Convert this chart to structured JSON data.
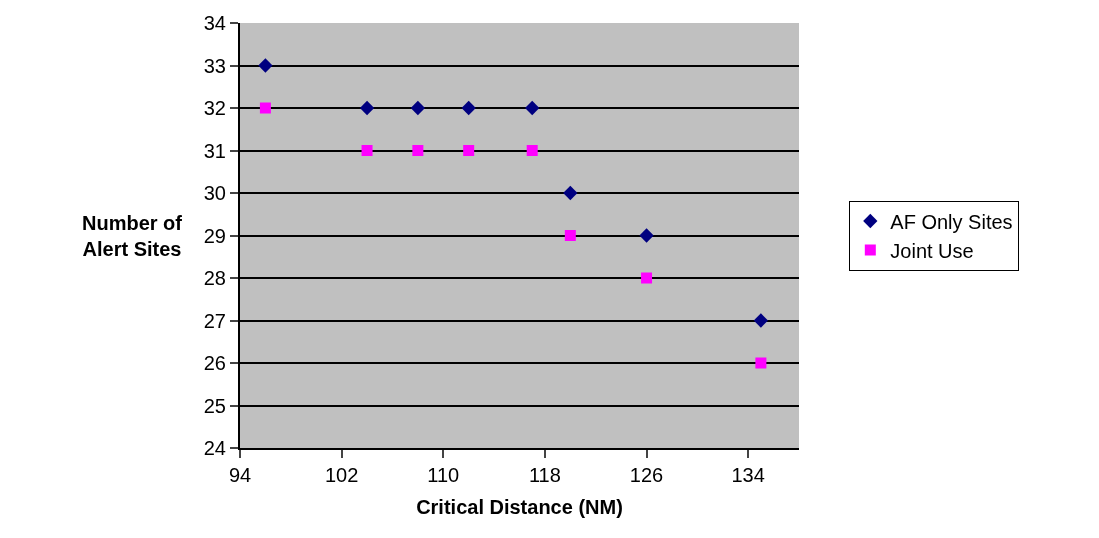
{
  "chart_data": {
    "type": "scatter",
    "xlabel": "Critical Distance (NM)",
    "ylabel": "Number of\nAlert Sites",
    "x": [
      96,
      104,
      108,
      112,
      117,
      120,
      126,
      135
    ],
    "series": [
      {
        "name": "AF Only Sites",
        "color": "#000080",
        "marker": "diamond",
        "values": [
          33,
          32,
          32,
          32,
          32,
          30,
          29,
          27
        ]
      },
      {
        "name": "Joint Use",
        "color": "#ff00ff",
        "marker": "square",
        "values": [
          32,
          31,
          31,
          31,
          31,
          29,
          28,
          26
        ]
      }
    ],
    "xlim": [
      94,
      138
    ],
    "xticks": [
      94,
      102,
      110,
      118,
      126,
      134
    ],
    "ylim": [
      24,
      34
    ],
    "yticks": [
      24,
      25,
      26,
      27,
      28,
      29,
      30,
      31,
      32,
      33,
      34
    ],
    "grid": "y",
    "legend": "right"
  }
}
